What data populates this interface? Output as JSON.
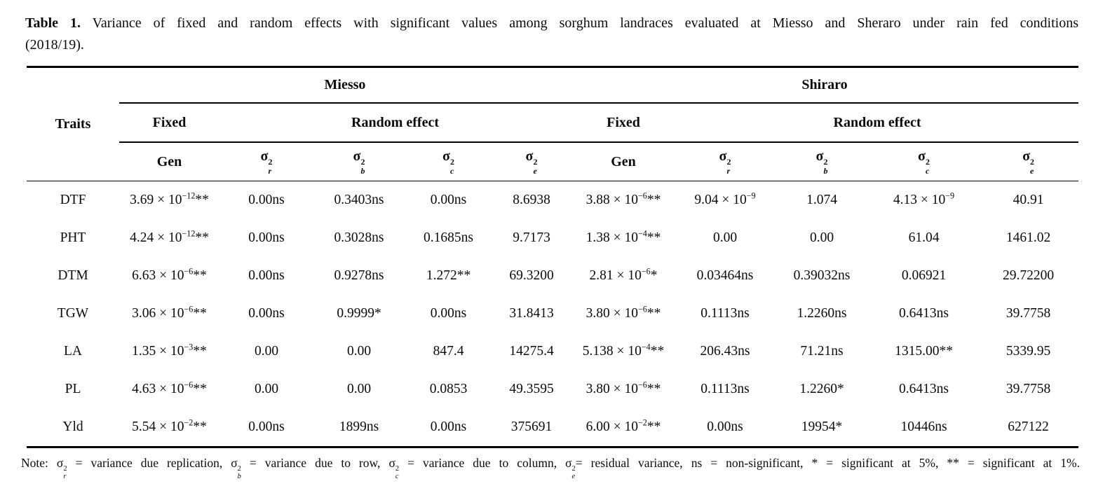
{
  "caption": {
    "label": "Table 1.",
    "line1": "Variance of fixed and random effects with significant values among sorghum landraces evaluated at Miesso and Sheraro under rain fed conditions",
    "line2": "(2018/19)."
  },
  "table": {
    "traits_header": "Traits",
    "groups": [
      {
        "label": "Miesso",
        "effects": [
          {
            "label": "Fixed",
            "span": 1
          },
          {
            "label": "Random effect",
            "span": 4
          }
        ]
      },
      {
        "label": "Shiraro",
        "effects": [
          {
            "label": "Fixed",
            "span": 1
          },
          {
            "label": "Random effect",
            "span": 4
          }
        ]
      }
    ],
    "columns": [
      "Gen",
      "σ^{2}_{r}",
      "σ^{2}_{b}",
      "σ^{2}_{c}",
      "σ^{2}_{e}",
      "Gen",
      "σ^{2}_{r}",
      "σ^{2}_{b}",
      "σ^{2}_{c}",
      "σ^{2}_{e}"
    ],
    "rows": [
      {
        "trait": "DTF",
        "values": [
          "3.69 × 10^{−12}**",
          "0.00ns",
          "0.3403ns",
          "0.00ns",
          "8.6938",
          "3.88 × 10^{−6}**",
          "9.04 × 10^{−9}",
          "1.074",
          "4.13 × 10^{−9}",
          "40.91"
        ]
      },
      {
        "trait": "PHT",
        "values": [
          "4.24 × 10^{−12}**",
          "0.00ns",
          "0.3028ns",
          "0.1685ns",
          "9.7173",
          "1.38 × 10^{−4}**",
          "0.00",
          "0.00",
          "61.04",
          "1461.02"
        ]
      },
      {
        "trait": "DTM",
        "values": [
          "6.63 × 10^{−6}**",
          "0.00ns",
          "0.9278ns",
          "1.272**",
          "69.3200",
          "2.81 × 10^{−6}*",
          "0.03464ns",
          "0.39032ns",
          "0.06921",
          "29.72200"
        ]
      },
      {
        "trait": "TGW",
        "values": [
          "3.06 × 10^{−6}**",
          "0.00ns",
          "0.9999*",
          "0.00ns",
          "31.8413",
          "3.80 × 10^{−6}**",
          "0.1113ns",
          "1.2260ns",
          "0.6413ns",
          "39.7758"
        ]
      },
      {
        "trait": "LA",
        "values": [
          "1.35 × 10^{−3}**",
          "0.00",
          "0.00",
          "847.4",
          "14275.4",
          "5.138 × 10^{−4}**",
          "206.43ns",
          "71.21ns",
          "1315.00**",
          "5339.95"
        ]
      },
      {
        "trait": "PL",
        "values": [
          "4.63 × 10^{−6}**",
          "0.00",
          "0.00",
          "0.0853",
          "49.3595",
          "3.80 × 10^{−6}**",
          "0.1113ns",
          "1.2260*",
          "0.6413ns",
          "39.7758"
        ]
      },
      {
        "trait": "Yld",
        "values": [
          "5.54 × 10^{−2}**",
          "0.00ns",
          "1899ns",
          "0.00ns",
          "375691",
          "6.00 × 10^{−2}**",
          "0.00ns",
          "19954*",
          "10446ns",
          "627122"
        ]
      }
    ]
  },
  "note": "Note: σ^{2}_{r} = variance due replication, σ^{2}_{b} = variance due to row, σ^{2}_{c} = variance due to column, σ^{2}_{e}= residual variance, ns = non-significant, * = significant at 5%, ** = significant at 1%."
}
